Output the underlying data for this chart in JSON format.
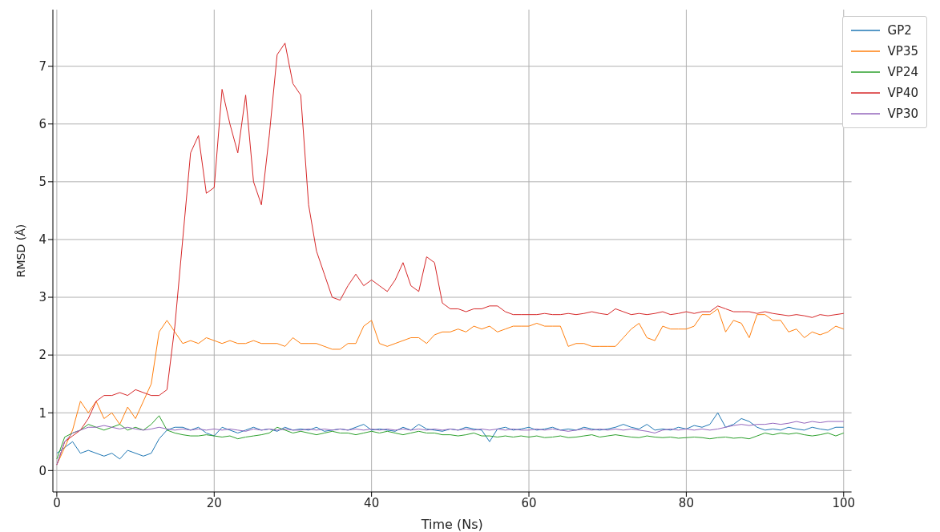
{
  "chart_data": {
    "type": "line",
    "xlabel": "Time (Ns)",
    "ylabel": "RMSD (Å)",
    "xlim": [
      -0.5,
      101
    ],
    "ylim": [
      -0.37,
      7.98
    ],
    "xticks": [
      0,
      20,
      40,
      60,
      80,
      100
    ],
    "yticks": [
      0,
      1,
      2,
      3,
      4,
      5,
      6,
      7
    ],
    "grid": true,
    "legend": "top right",
    "marker": "none",
    "line_style": "solid",
    "x": [
      0,
      1,
      2,
      3,
      4,
      5,
      6,
      7,
      8,
      9,
      10,
      11,
      12,
      13,
      14,
      15,
      16,
      17,
      18,
      19,
      20,
      21,
      22,
      23,
      24,
      25,
      26,
      27,
      28,
      29,
      30,
      31,
      32,
      33,
      34,
      35,
      36,
      37,
      38,
      39,
      40,
      41,
      42,
      43,
      44,
      45,
      46,
      47,
      48,
      49,
      50,
      51,
      52,
      53,
      54,
      55,
      56,
      57,
      58,
      59,
      60,
      61,
      62,
      63,
      64,
      65,
      66,
      67,
      68,
      69,
      70,
      71,
      72,
      73,
      74,
      75,
      76,
      77,
      78,
      79,
      80,
      81,
      82,
      83,
      84,
      85,
      86,
      87,
      88,
      89,
      90,
      91,
      92,
      93,
      94,
      95,
      96,
      97,
      98,
      99,
      100
    ],
    "series": [
      {
        "name": "GP2",
        "color": "#1f77b4",
        "values": [
          0.3,
          0.4,
          0.5,
          0.3,
          0.35,
          0.3,
          0.25,
          0.3,
          0.2,
          0.35,
          0.3,
          0.25,
          0.3,
          0.55,
          0.7,
          0.75,
          0.75,
          0.7,
          0.75,
          0.65,
          0.6,
          0.75,
          0.7,
          0.65,
          0.7,
          0.75,
          0.7,
          0.72,
          0.68,
          0.75,
          0.7,
          0.72,
          0.7,
          0.75,
          0.68,
          0.7,
          0.72,
          0.7,
          0.75,
          0.8,
          0.7,
          0.72,
          0.7,
          0.68,
          0.75,
          0.7,
          0.8,
          0.72,
          0.7,
          0.68,
          0.72,
          0.7,
          0.75,
          0.72,
          0.7,
          0.5,
          0.72,
          0.75,
          0.7,
          0.72,
          0.75,
          0.7,
          0.72,
          0.75,
          0.7,
          0.72,
          0.7,
          0.75,
          0.72,
          0.7,
          0.72,
          0.75,
          0.8,
          0.75,
          0.72,
          0.8,
          0.7,
          0.72,
          0.7,
          0.75,
          0.72,
          0.78,
          0.75,
          0.8,
          1.0,
          0.75,
          0.8,
          0.9,
          0.85,
          0.75,
          0.7,
          0.72,
          0.7,
          0.75,
          0.72,
          0.7,
          0.75,
          0.72,
          0.7,
          0.75,
          0.75
        ]
      },
      {
        "name": "VP35",
        "color": "#ff7f0e",
        "values": [
          0.1,
          0.4,
          0.7,
          1.2,
          1.0,
          1.2,
          0.9,
          1.0,
          0.8,
          1.1,
          0.9,
          1.2,
          1.5,
          2.4,
          2.6,
          2.4,
          2.2,
          2.25,
          2.2,
          2.3,
          2.25,
          2.2,
          2.25,
          2.2,
          2.2,
          2.25,
          2.2,
          2.2,
          2.2,
          2.15,
          2.3,
          2.2,
          2.2,
          2.2,
          2.15,
          2.1,
          2.1,
          2.2,
          2.2,
          2.5,
          2.6,
          2.2,
          2.15,
          2.2,
          2.25,
          2.3,
          2.3,
          2.2,
          2.35,
          2.4,
          2.4,
          2.45,
          2.4,
          2.5,
          2.45,
          2.5,
          2.4,
          2.45,
          2.5,
          2.5,
          2.5,
          2.55,
          2.5,
          2.5,
          2.5,
          2.15,
          2.2,
          2.2,
          2.15,
          2.15,
          2.15,
          2.15,
          2.3,
          2.45,
          2.55,
          2.3,
          2.25,
          2.5,
          2.45,
          2.45,
          2.45,
          2.5,
          2.7,
          2.7,
          2.8,
          2.4,
          2.6,
          2.55,
          2.3,
          2.7,
          2.7,
          2.6,
          2.6,
          2.4,
          2.45,
          2.3,
          2.4,
          2.35,
          2.4,
          2.5,
          2.45
        ]
      },
      {
        "name": "VP24",
        "color": "#2ca02c",
        "values": [
          0.2,
          0.58,
          0.65,
          0.7,
          0.8,
          0.75,
          0.7,
          0.75,
          0.8,
          0.7,
          0.75,
          0.7,
          0.8,
          0.95,
          0.7,
          0.65,
          0.62,
          0.6,
          0.6,
          0.62,
          0.6,
          0.58,
          0.6,
          0.55,
          0.58,
          0.6,
          0.62,
          0.65,
          0.75,
          0.7,
          0.65,
          0.68,
          0.65,
          0.62,
          0.65,
          0.68,
          0.65,
          0.65,
          0.62,
          0.65,
          0.68,
          0.65,
          0.68,
          0.65,
          0.62,
          0.65,
          0.68,
          0.65,
          0.65,
          0.62,
          0.62,
          0.6,
          0.62,
          0.65,
          0.6,
          0.6,
          0.58,
          0.6,
          0.58,
          0.6,
          0.58,
          0.6,
          0.57,
          0.58,
          0.6,
          0.57,
          0.58,
          0.6,
          0.62,
          0.58,
          0.6,
          0.62,
          0.6,
          0.58,
          0.57,
          0.6,
          0.58,
          0.57,
          0.58,
          0.56,
          0.57,
          0.58,
          0.57,
          0.55,
          0.57,
          0.58,
          0.56,
          0.57,
          0.55,
          0.6,
          0.65,
          0.62,
          0.65,
          0.63,
          0.65,
          0.62,
          0.6,
          0.62,
          0.65,
          0.6,
          0.65
        ]
      },
      {
        "name": "VP40",
        "color": "#d62728",
        "values": [
          0.1,
          0.5,
          0.6,
          0.7,
          0.9,
          1.2,
          1.3,
          1.3,
          1.35,
          1.3,
          1.4,
          1.35,
          1.3,
          1.3,
          1.4,
          2.5,
          4.0,
          5.5,
          5.8,
          4.8,
          4.9,
          6.6,
          6.0,
          5.5,
          6.5,
          5.0,
          4.6,
          5.8,
          7.2,
          7.4,
          6.7,
          6.5,
          4.6,
          3.8,
          3.4,
          3.0,
          2.95,
          3.2,
          3.4,
          3.2,
          3.3,
          3.2,
          3.1,
          3.3,
          3.6,
          3.2,
          3.1,
          3.7,
          3.6,
          2.9,
          2.8,
          2.8,
          2.75,
          2.8,
          2.8,
          2.85,
          2.85,
          2.75,
          2.7,
          2.7,
          2.7,
          2.7,
          2.72,
          2.7,
          2.7,
          2.72,
          2.7,
          2.72,
          2.75,
          2.72,
          2.7,
          2.8,
          2.75,
          2.7,
          2.72,
          2.7,
          2.72,
          2.75,
          2.7,
          2.72,
          2.75,
          2.72,
          2.75,
          2.75,
          2.85,
          2.8,
          2.75,
          2.75,
          2.75,
          2.72,
          2.75,
          2.72,
          2.7,
          2.68,
          2.7,
          2.68,
          2.65,
          2.7,
          2.68,
          2.7,
          2.72
        ]
      },
      {
        "name": "VP30",
        "color": "#9467bd",
        "values": [
          0.1,
          0.5,
          0.65,
          0.7,
          0.75,
          0.75,
          0.78,
          0.75,
          0.72,
          0.75,
          0.72,
          0.7,
          0.72,
          0.75,
          0.72,
          0.7,
          0.72,
          0.7,
          0.72,
          0.7,
          0.72,
          0.7,
          0.72,
          0.7,
          0.68,
          0.72,
          0.7,
          0.72,
          0.7,
          0.72,
          0.7,
          0.7,
          0.72,
          0.7,
          0.72,
          0.7,
          0.72,
          0.7,
          0.72,
          0.7,
          0.72,
          0.7,
          0.72,
          0.7,
          0.72,
          0.7,
          0.72,
          0.7,
          0.72,
          0.7,
          0.72,
          0.7,
          0.72,
          0.7,
          0.72,
          0.7,
          0.72,
          0.7,
          0.72,
          0.7,
          0.7,
          0.72,
          0.7,
          0.72,
          0.7,
          0.68,
          0.7,
          0.72,
          0.7,
          0.72,
          0.7,
          0.72,
          0.7,
          0.72,
          0.7,
          0.68,
          0.65,
          0.7,
          0.72,
          0.7,
          0.72,
          0.7,
          0.72,
          0.7,
          0.72,
          0.75,
          0.78,
          0.8,
          0.78,
          0.8,
          0.8,
          0.82,
          0.8,
          0.82,
          0.85,
          0.82,
          0.85,
          0.83,
          0.85,
          0.85,
          0.85
        ]
      }
    ]
  }
}
